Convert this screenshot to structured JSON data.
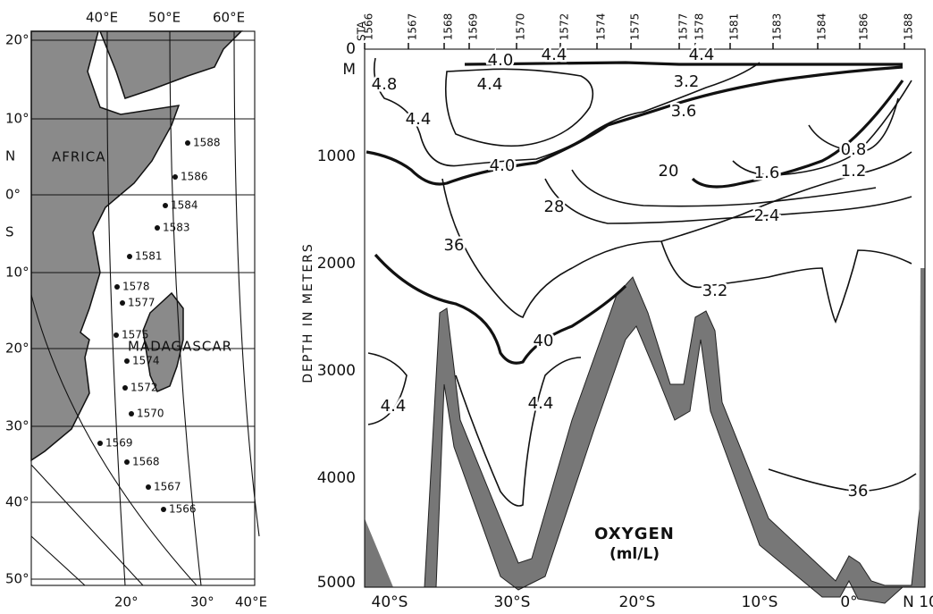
{
  "map": {
    "lon_top": [
      "40°E",
      "50°E",
      "60°E"
    ],
    "lon_bottom": [
      "20°",
      "30°",
      "40°E"
    ],
    "lat": [
      "20°",
      "10°",
      "N",
      "0°",
      "S",
      "10°",
      "20°",
      "30°",
      "40°",
      "50°"
    ],
    "africa": "AFRICA",
    "madagascar": "MADAGASCAR",
    "stations": [
      "1588",
      "1586",
      "1584",
      "1583",
      "1581",
      "1578",
      "1577",
      "1575",
      "1574",
      "1572",
      "1570",
      "1569",
      "1568",
      "1567",
      "1566"
    ]
  },
  "section": {
    "sta": "STA",
    "stations": [
      "1566",
      "1567",
      "1568",
      "1569",
      "1570",
      "1572",
      "1574",
      "1575",
      "1577",
      "1578",
      "1581",
      "1583",
      "1584",
      "1586",
      "1588"
    ],
    "axis_title": "DEPTH IN METERS",
    "depth_ticks": [
      "0",
      "M",
      "1000",
      "2000",
      "3000",
      "4000",
      "5000"
    ],
    "lat_ticks": [
      "40°S",
      "30°S",
      "20°S",
      "10°S",
      "0°",
      "N 10"
    ],
    "contour_labels": [
      "4.0",
      "4.4",
      "4.4",
      "3.2",
      "4.4",
      "4.8",
      "4.4",
      "3.6",
      "4.0",
      "20",
      "1.6",
      "1.2",
      "0.8",
      "28",
      "2.4",
      "36",
      "3.2",
      "40",
      "4.4",
      "4.4",
      "36"
    ],
    "title": "OXYGEN",
    "units": "(ml/L)"
  }
}
